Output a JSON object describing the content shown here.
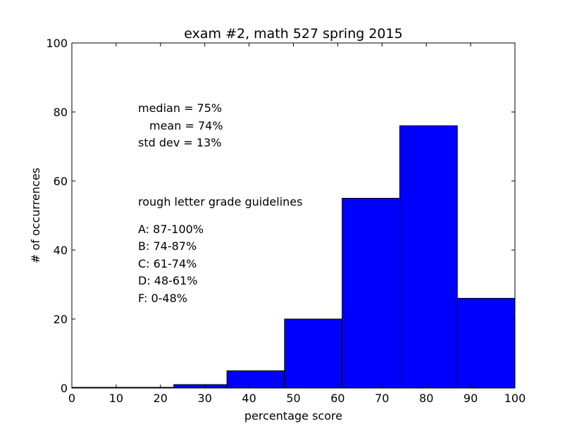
{
  "chart_data": {
    "type": "bar",
    "title": "exam #2, math 527 spring 2015",
    "xlabel": "percentage score",
    "ylabel": "# of occurrences",
    "xlim": [
      0,
      100
    ],
    "ylim": [
      0,
      100
    ],
    "xticks": [
      0,
      10,
      20,
      30,
      40,
      50,
      60,
      70,
      80,
      90,
      100
    ],
    "yticks": [
      0,
      20,
      40,
      60,
      80,
      100
    ],
    "bins": [
      {
        "x0": 0,
        "x1": 23,
        "value": 0
      },
      {
        "x0": 23,
        "x1": 35,
        "value": 1
      },
      {
        "x0": 35,
        "x1": 48,
        "value": 5
      },
      {
        "x0": 48,
        "x1": 61,
        "value": 20
      },
      {
        "x0": 61,
        "x1": 74,
        "value": 55
      },
      {
        "x0": 74,
        "x1": 87,
        "value": 76
      },
      {
        "x0": 87,
        "x1": 100,
        "value": 26
      }
    ],
    "bar_color": "#0000ff",
    "grid": false,
    "stats": {
      "median": "median = 75%",
      "mean": "mean = 74%",
      "std": "std dev = 13%"
    },
    "guidelines": {
      "heading": "rough letter grade guidelines",
      "items": [
        "A: 87-100%",
        "B: 74-87%",
        "C: 61-74%",
        "D: 48-61%",
        "F:  0-48%"
      ]
    }
  }
}
